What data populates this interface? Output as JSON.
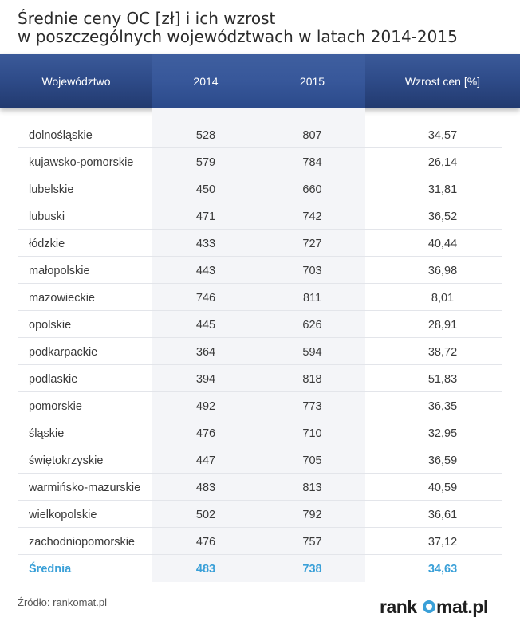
{
  "title": {
    "line1": "Średnie ceny OC [zł] i ich wzrost",
    "line2": "w poszczególnych województwach w latach 2014-2015"
  },
  "table": {
    "columns": [
      "Województwo",
      "2014",
      "2015",
      "Wzrost cen [%]"
    ],
    "rows": [
      {
        "name": "dolnośląskie",
        "y2014": "528",
        "y2015": "807",
        "growth": "34,57"
      },
      {
        "name": "kujawsko-pomorskie",
        "y2014": "579",
        "y2015": "784",
        "growth": "26,14"
      },
      {
        "name": "lubelskie",
        "y2014": "450",
        "y2015": "660",
        "growth": "31,81"
      },
      {
        "name": "lubuski",
        "y2014": "471",
        "y2015": "742",
        "growth": "36,52"
      },
      {
        "name": "łódzkie",
        "y2014": "433",
        "y2015": "727",
        "growth": "40,44"
      },
      {
        "name": "małopolskie",
        "y2014": "443",
        "y2015": "703",
        "growth": "36,98"
      },
      {
        "name": "mazowieckie",
        "y2014": "746",
        "y2015": "811",
        "growth": "8,01"
      },
      {
        "name": "opolskie",
        "y2014": "445",
        "y2015": "626",
        "growth": "28,91"
      },
      {
        "name": "podkarpackie",
        "y2014": "364",
        "y2015": "594",
        "growth": "38,72"
      },
      {
        "name": "podlaskie",
        "y2014": "394",
        "y2015": "818",
        "growth": "51,83"
      },
      {
        "name": "pomorskie",
        "y2014": "492",
        "y2015": "773",
        "growth": "36,35"
      },
      {
        "name": "śląskie",
        "y2014": "476",
        "y2015": "710",
        "growth": "32,95"
      },
      {
        "name": "świętokrzyskie",
        "y2014": "447",
        "y2015": "705",
        "growth": "36,59"
      },
      {
        "name": "warmińsko-mazurskie",
        "y2014": "483",
        "y2015": "813",
        "growth": "40,59"
      },
      {
        "name": "wielkopolskie",
        "y2014": "502",
        "y2015": "792",
        "growth": "36,61"
      },
      {
        "name": "zachodniopomorskie",
        "y2014": "476",
        "y2015": "757",
        "growth": "37,12"
      }
    ],
    "average": {
      "name": "Średnia",
      "y2014": "483",
      "y2015": "738",
      "growth": "34,63"
    }
  },
  "chart_data": {
    "type": "table",
    "title": "Średnie ceny OC [zł] i ich wzrost w poszczególnych województwach w latach 2014-2015",
    "columns": [
      "Województwo",
      "2014",
      "2015",
      "Wzrost cen [%]"
    ],
    "categories": [
      "dolnośląskie",
      "kujawsko-pomorskie",
      "lubelskie",
      "lubuski",
      "łódzkie",
      "małopolskie",
      "mazowieckie",
      "opolskie",
      "podkarpackie",
      "podlaskie",
      "pomorskie",
      "śląskie",
      "świętokrzyskie",
      "warmińsko-mazurskie",
      "wielkopolskie",
      "zachodniopomorskie"
    ],
    "series": [
      {
        "name": "2014",
        "values": [
          528,
          579,
          450,
          471,
          433,
          443,
          746,
          445,
          364,
          394,
          492,
          476,
          447,
          483,
          502,
          476
        ]
      },
      {
        "name": "2015",
        "values": [
          807,
          784,
          660,
          742,
          727,
          703,
          811,
          626,
          594,
          818,
          773,
          710,
          705,
          813,
          792,
          757
        ]
      },
      {
        "name": "Wzrost cen [%]",
        "values": [
          34.57,
          26.14,
          31.81,
          36.52,
          40.44,
          36.98,
          8.01,
          28.91,
          38.72,
          51.83,
          36.35,
          32.95,
          36.59,
          40.59,
          36.61,
          37.12
        ]
      }
    ],
    "average": {
      "label": "Średnia",
      "values": [
        483,
        738,
        34.63
      ]
    }
  },
  "footer": {
    "source": "Źródło: rankomat.pl",
    "logo_text": "rankomat.pl"
  },
  "colors": {
    "header": "#2f4c8a",
    "average_text": "#3aa0d8"
  }
}
